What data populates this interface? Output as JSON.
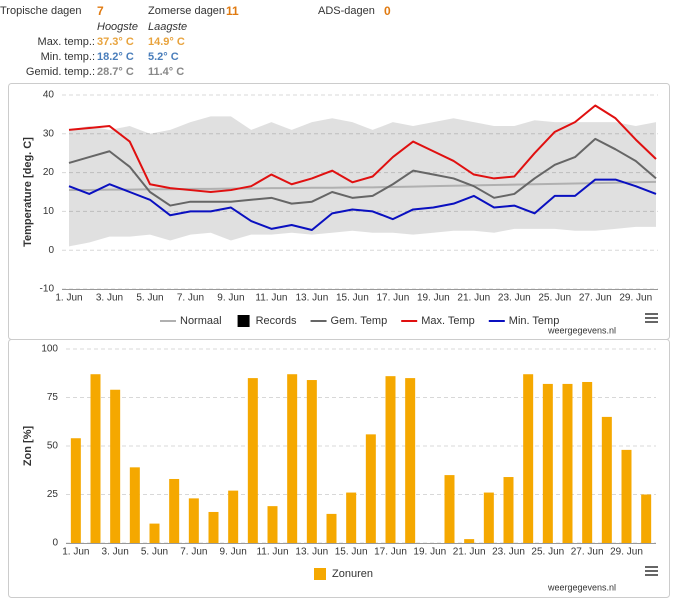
{
  "stats": [
    {
      "label": "Tropische dagen",
      "value": 7
    },
    {
      "label": "Zomerse dagen",
      "value": 11
    },
    {
      "label": "ADS-dagen",
      "value": 0
    }
  ],
  "temps": {
    "headers": [
      "Hoogste",
      "Laagste"
    ],
    "rows": [
      {
        "label": "Max. temp.:",
        "values": [
          "37.3° C",
          "14.9° C"
        ],
        "color": "#e8a33d"
      },
      {
        "label": "Min. temp.:",
        "values": [
          "18.2° C",
          "5.2° C"
        ],
        "color": "#4a7ebb"
      },
      {
        "label": "Gemid. temp.:",
        "values": [
          "28.7° C",
          "11.4° C"
        ],
        "color": "#888888"
      }
    ]
  },
  "chart_data": [
    {
      "type": "line",
      "y_label": "Temperature [deg. C]",
      "credit": "weergegevens.nl",
      "categories": [
        "1. Jun",
        null,
        "3. Jun",
        null,
        "5. Jun",
        null,
        "7. Jun",
        null,
        "9. Jun",
        null,
        "11. Jun",
        null,
        "13. Jun",
        null,
        "15. Jun",
        null,
        "17. Jun",
        null,
        "19. Jun",
        null,
        "21. Jun",
        null,
        "23. Jun",
        null,
        "25. Jun",
        null,
        "27. Jun",
        null,
        "29. Jun",
        null
      ],
      "ylim": [
        -10,
        40
      ],
      "yticks": [
        -10,
        0,
        10,
        20,
        30,
        40
      ],
      "grid": true,
      "series": [
        {
          "name": "Normaal",
          "type": "line",
          "color": "#b0b0b0",
          "values": [
            15.5,
            15.5,
            15.6,
            15.6,
            15.7,
            15.7,
            15.8,
            15.8,
            15.9,
            15.9,
            16,
            16,
            16.1,
            16.1,
            16.2,
            16.2,
            16.3,
            16.4,
            16.5,
            16.6,
            16.7,
            16.8,
            16.9,
            17,
            17.1,
            17.2,
            17.3,
            17.4,
            17.5,
            17.6
          ]
        },
        {
          "name": "Records",
          "type": "arearange",
          "color": "#000000",
          "opacity": 0.12,
          "high": [
            31,
            32,
            31,
            32,
            30,
            31,
            33,
            34.5,
            34.5,
            31,
            33,
            31,
            33,
            34,
            33,
            31,
            33,
            32,
            33,
            34,
            33,
            32,
            32,
            33.5,
            33,
            33,
            33,
            33,
            32,
            33
          ],
          "low": [
            1,
            2,
            3.5,
            3.5,
            4,
            2.5,
            4,
            4.5,
            2.5,
            4,
            4,
            4.5,
            4,
            4.5,
            5,
            4.5,
            4.5,
            4,
            4.5,
            5,
            5,
            4.5,
            5.5,
            5.5,
            5.5,
            5,
            5,
            5.5,
            6,
            6
          ]
        },
        {
          "name": "Gem. Temp",
          "type": "line",
          "color": "#666666",
          "values": [
            22.5,
            24,
            25.5,
            21.5,
            15,
            11.5,
            12.5,
            12.5,
            12.5,
            13,
            13.5,
            12,
            12.5,
            15,
            13.5,
            14,
            17,
            20.5,
            19.5,
            18.5,
            16.5,
            13.5,
            14.5,
            18.5,
            22,
            24,
            28.7,
            26,
            23,
            18.5
          ]
        },
        {
          "name": "Max. Temp",
          "type": "line",
          "color": "#e01010",
          "values": [
            31,
            31.5,
            32,
            28,
            17,
            16,
            15.5,
            15,
            15.5,
            16.5,
            19.5,
            17,
            18.5,
            20.5,
            17.5,
            19,
            24,
            28,
            25.5,
            23,
            19.5,
            18.5,
            19,
            25,
            30.5,
            33,
            37.3,
            34,
            28.5,
            23.5
          ]
        },
        {
          "name": "Min. Temp",
          "type": "line",
          "color": "#0a10c0",
          "values": [
            16.5,
            14.5,
            17,
            15,
            13,
            9,
            10,
            10,
            11,
            7.5,
            5.5,
            6.5,
            5.2,
            9.5,
            10.5,
            10,
            8,
            10.5,
            11,
            12,
            14,
            11,
            11.5,
            9.5,
            14,
            14,
            18.2,
            18.2,
            16.5,
            14.5
          ]
        }
      ]
    },
    {
      "type": "bar",
      "y_label": "Zon [%]",
      "credit": "weergegevens.nl",
      "categories": [
        "1. Jun",
        null,
        "3. Jun",
        null,
        "5. Jun",
        null,
        "7. Jun",
        null,
        "9. Jun",
        null,
        "11. Jun",
        null,
        "13. Jun",
        null,
        "15. Jun",
        null,
        "17. Jun",
        null,
        "19. Jun",
        null,
        "21. Jun",
        null,
        "23. Jun",
        null,
        "25. Jun",
        null,
        "27. Jun",
        null,
        "29. Jun",
        null
      ],
      "ylim": [
        0,
        100
      ],
      "yticks": [
        0,
        25,
        50,
        75,
        100
      ],
      "grid": true,
      "series": [
        {
          "name": "Zonuren",
          "color": "#f5a800",
          "values": [
            54,
            87,
            79,
            39,
            10,
            33,
            23,
            16,
            27,
            85,
            19,
            87,
            84,
            15,
            26,
            56,
            86,
            85,
            0,
            35,
            2,
            26,
            34,
            87,
            82,
            82,
            83,
            65,
            48,
            25
          ]
        }
      ]
    }
  ]
}
